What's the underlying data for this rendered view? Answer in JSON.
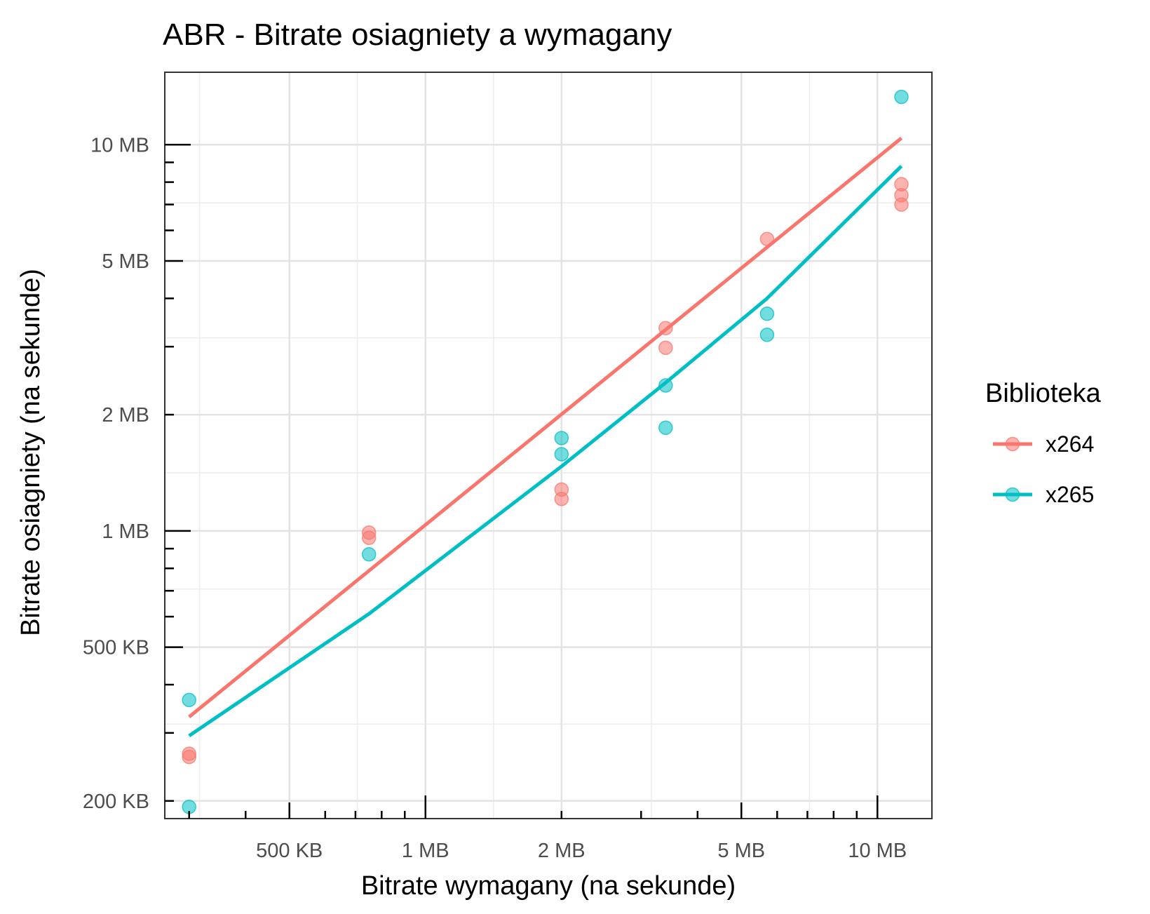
{
  "chart_data": {
    "type": "scatter",
    "title": "ABR - Bitrate osiagniety a wymagany",
    "xlabel": "Bitrate wymagany (na sekunde)",
    "ylabel": "Bitrate osiagniety (na sekunde)",
    "x_scale": "log10",
    "y_scale": "log10",
    "xlim_mb": [
      0.265,
      13.2
    ],
    "ylim_mb": [
      0.18,
      15.4
    ],
    "x_ticks": [
      {
        "value_mb": 0.5,
        "label": "500 KB"
      },
      {
        "value_mb": 1,
        "label": "1 MB"
      },
      {
        "value_mb": 2,
        "label": "2 MB"
      },
      {
        "value_mb": 5,
        "label": "5 MB"
      },
      {
        "value_mb": 10,
        "label": "10 MB"
      }
    ],
    "y_ticks": [
      {
        "value_mb": 0.2,
        "label": "200 KB"
      },
      {
        "value_mb": 0.5,
        "label": "500 KB"
      },
      {
        "value_mb": 1,
        "label": "1 MB"
      },
      {
        "value_mb": 2,
        "label": "2 MB"
      },
      {
        "value_mb": 5,
        "label": "5 MB"
      },
      {
        "value_mb": 10,
        "label": "10 MB"
      }
    ],
    "grid": true,
    "legend": {
      "title": "Biblioteka",
      "position": "right"
    },
    "series": [
      {
        "name": "x264",
        "color": "#F8766D",
        "points": [
          {
            "x": 0.3,
            "y": 0.265
          },
          {
            "x": 0.3,
            "y": 0.26
          },
          {
            "x": 0.75,
            "y": 0.99
          },
          {
            "x": 0.75,
            "y": 0.96
          },
          {
            "x": 2.0,
            "y": 1.28
          },
          {
            "x": 2.0,
            "y": 1.21
          },
          {
            "x": 3.4,
            "y": 3.35
          },
          {
            "x": 3.4,
            "y": 2.98
          },
          {
            "x": 5.7,
            "y": 5.7
          },
          {
            "x": 11.3,
            "y": 7.9
          },
          {
            "x": 11.3,
            "y": 7.4
          },
          {
            "x": 11.3,
            "y": 7.0
          }
        ],
        "trend": [
          {
            "x": 0.3,
            "y": 0.33
          },
          {
            "x": 11.3,
            "y": 10.4
          }
        ]
      },
      {
        "name": "x265",
        "color": "#00BFC4",
        "points": [
          {
            "x": 0.3,
            "y": 0.365
          },
          {
            "x": 0.3,
            "y": 0.193
          },
          {
            "x": 0.75,
            "y": 0.87
          },
          {
            "x": 2.0,
            "y": 1.74
          },
          {
            "x": 2.0,
            "y": 1.58
          },
          {
            "x": 3.4,
            "y": 2.38
          },
          {
            "x": 3.4,
            "y": 1.85
          },
          {
            "x": 5.7,
            "y": 3.65
          },
          {
            "x": 5.7,
            "y": 3.22
          },
          {
            "x": 11.3,
            "y": 13.3
          }
        ],
        "trend": [
          {
            "x": 0.3,
            "y": 0.295
          },
          {
            "x": 0.75,
            "y": 0.61
          },
          {
            "x": 2.0,
            "y": 1.47
          },
          {
            "x": 3.4,
            "y": 2.42
          },
          {
            "x": 5.7,
            "y": 4.0
          },
          {
            "x": 11.3,
            "y": 8.8
          }
        ]
      }
    ]
  }
}
